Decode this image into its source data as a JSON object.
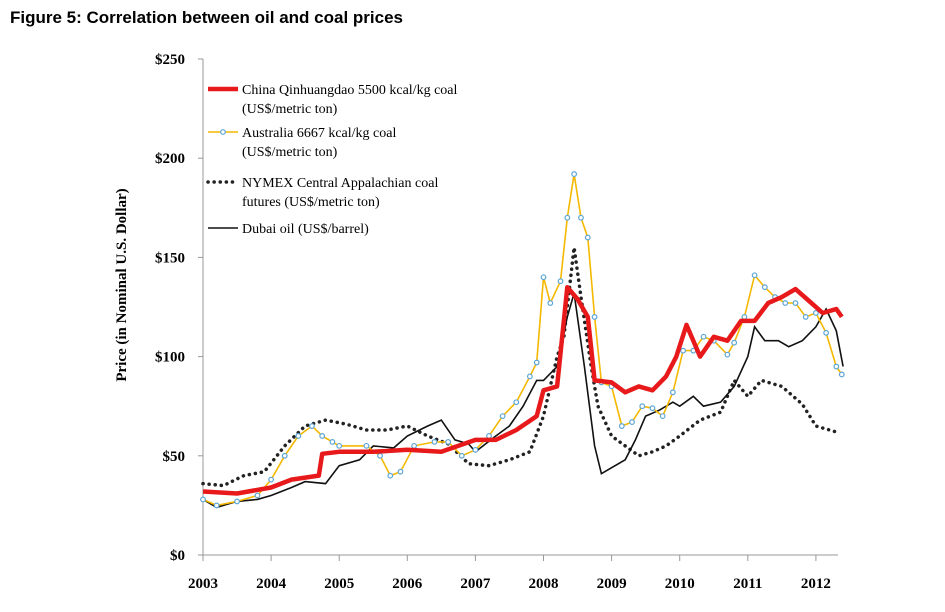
{
  "chart_data": {
    "type": "line",
    "title": "Figure 5: Correlation between oil and coal prices",
    "xlabel": "",
    "ylabel": "Price (in Nominal U.S. Dollar)",
    "xlim": [
      2003,
      2012.4
    ],
    "ylim": [
      0,
      250
    ],
    "x_ticks": [
      "2003",
      "2004",
      "2005",
      "2006",
      "2007",
      "2008",
      "2009",
      "2010",
      "2011",
      "2012"
    ],
    "y_ticks": [
      "$0",
      "$50",
      "$100",
      "$150",
      "$200",
      "$250"
    ],
    "y_tick_values": [
      0,
      50,
      100,
      150,
      200,
      250
    ],
    "grid": false,
    "legend_position": "top-left",
    "series": [
      {
        "name_lines": [
          "China Qinhuangdao 5500 kcal/kg coal",
          "(US$/metric ton)"
        ],
        "color": "#e8191b",
        "style": "thick",
        "x": [
          2003,
          2003.5,
          2004,
          2004.3,
          2004.7,
          2004.75,
          2005,
          2005.5,
          2006,
          2006.5,
          2007,
          2007.3,
          2007.6,
          2007.9,
          2008,
          2008.2,
          2008.35,
          2008.5,
          2008.65,
          2008.75,
          2009,
          2009.2,
          2009.4,
          2009.6,
          2009.8,
          2009.95,
          2010.1,
          2010.3,
          2010.5,
          2010.7,
          2010.9,
          2011.1,
          2011.3,
          2011.5,
          2011.7,
          2011.9,
          2012.1,
          2012.3,
          2012.38
        ],
        "y": [
          32,
          31,
          34,
          38,
          40,
          51,
          52,
          52,
          53,
          52,
          58,
          58,
          63,
          70,
          83,
          85,
          135,
          129,
          120,
          88,
          87,
          82,
          85,
          83,
          90,
          100,
          116,
          100,
          110,
          108,
          118,
          118,
          127,
          130,
          134,
          128,
          122,
          124,
          120
        ]
      },
      {
        "name_lines": [
          "Australia 6667 kcal/kg coal",
          "(US$/metric ton)"
        ],
        "color": "#f5b800",
        "marker_color": "#5aa5d6",
        "style": "markers",
        "x": [
          2003,
          2003.2,
          2003.5,
          2003.8,
          2004,
          2004.2,
          2004.4,
          2004.6,
          2004.75,
          2004.9,
          2005,
          2005.4,
          2005.6,
          2005.75,
          2005.9,
          2006.1,
          2006.4,
          2006.6,
          2006.8,
          2007,
          2007.2,
          2007.4,
          2007.6,
          2007.8,
          2007.9,
          2008.0,
          2008.1,
          2008.25,
          2008.35,
          2008.45,
          2008.55,
          2008.65,
          2008.75,
          2008.85,
          2009.0,
          2009.15,
          2009.3,
          2009.45,
          2009.6,
          2009.75,
          2009.9,
          2010.05,
          2010.2,
          2010.35,
          2010.5,
          2010.7,
          2010.8,
          2010.95,
          2011.1,
          2011.25,
          2011.4,
          2011.55,
          2011.7,
          2011.85,
          2012.0,
          2012.15,
          2012.3,
          2012.38
        ],
        "y": [
          28,
          25,
          27,
          30,
          38,
          50,
          60,
          65,
          60,
          57,
          55,
          55,
          50,
          40,
          42,
          55,
          57,
          57,
          50,
          53,
          60,
          70,
          77,
          90,
          97,
          140,
          127,
          138,
          170,
          192,
          170,
          160,
          120,
          87,
          85,
          65,
          67,
          75,
          74,
          70,
          82,
          103,
          103,
          110,
          108,
          101,
          107,
          120,
          141,
          135,
          130,
          127,
          127,
          120,
          122,
          112,
          95,
          91
        ]
      },
      {
        "name_lines": [
          "NYMEX Central Appalachian coal",
          "futures (US$/metric ton)"
        ],
        "color": "#222222",
        "style": "dotted",
        "x": [
          2003,
          2003.3,
          2003.6,
          2003.9,
          2004.2,
          2004.5,
          2004.8,
          2005.1,
          2005.4,
          2005.7,
          2006.0,
          2006.3,
          2006.6,
          2006.9,
          2007.2,
          2007.5,
          2007.8,
          2008.0,
          2008.2,
          2008.3,
          2008.45,
          2008.55,
          2008.7,
          2008.8,
          2009.0,
          2009.2,
          2009.4,
          2009.6,
          2009.8,
          2010.0,
          2010.3,
          2010.6,
          2010.8,
          2011.0,
          2011.2,
          2011.5,
          2011.8,
          2012.0,
          2012.3
        ],
        "y": [
          36,
          35,
          40,
          42,
          55,
          65,
          68,
          66,
          63,
          63,
          65,
          60,
          56,
          46,
          45,
          48,
          52,
          70,
          100,
          110,
          155,
          130,
          95,
          75,
          60,
          55,
          50,
          52,
          55,
          60,
          68,
          72,
          88,
          80,
          88,
          85,
          76,
          65,
          62
        ]
      },
      {
        "name_lines": [
          "Dubai oil (US$/barrel)"
        ],
        "color": "#111111",
        "style": "thin",
        "x": [
          2003,
          2003.2,
          2003.5,
          2003.8,
          2004.0,
          2004.3,
          2004.5,
          2004.8,
          2005.0,
          2005.3,
          2005.5,
          2005.8,
          2006.0,
          2006.3,
          2006.5,
          2006.7,
          2006.9,
          2007.0,
          2007.3,
          2007.5,
          2007.7,
          2007.9,
          2008.0,
          2008.2,
          2008.35,
          2008.45,
          2008.6,
          2008.75,
          2008.85,
          2009.0,
          2009.2,
          2009.35,
          2009.5,
          2009.7,
          2009.9,
          2010.0,
          2010.2,
          2010.35,
          2010.6,
          2010.8,
          2011.0,
          2011.1,
          2011.25,
          2011.45,
          2011.6,
          2011.8,
          2012.0,
          2012.15,
          2012.3,
          2012.4
        ],
        "y": [
          28,
          24,
          27,
          28,
          30,
          34,
          37,
          36,
          45,
          48,
          55,
          54,
          60,
          65,
          68,
          58,
          56,
          52,
          60,
          65,
          75,
          88,
          88,
          95,
          120,
          132,
          95,
          55,
          41,
          44,
          48,
          58,
          70,
          73,
          77,
          75,
          80,
          75,
          77,
          85,
          100,
          115,
          108,
          108,
          105,
          108,
          115,
          124,
          113,
          95
        ]
      }
    ]
  }
}
